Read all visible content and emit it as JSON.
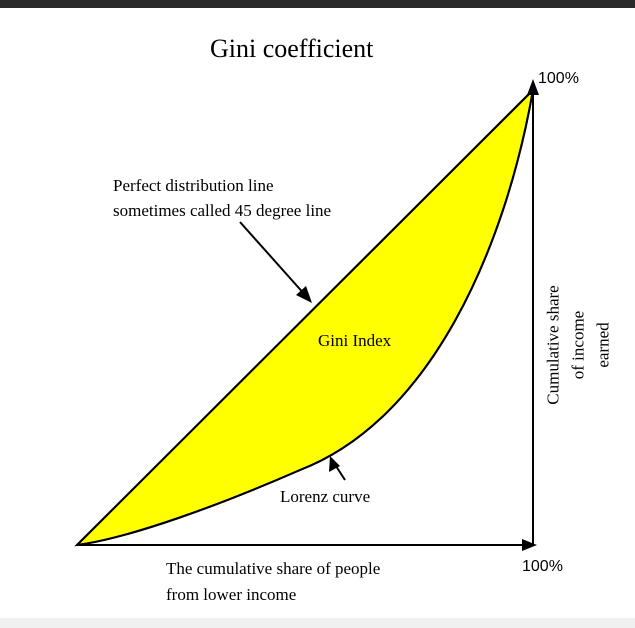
{
  "title": "Gini coefficient",
  "top_percent": "100%",
  "right_percent": "100%",
  "perfect_line_label": [
    "Perfect distribution line",
    "sometimes called 45 degree line"
  ],
  "gini_index_label": "Gini Index",
  "lorenz_label": "Lorenz curve",
  "x_axis_label": [
    "The cumulative share of people",
    "from lower income"
  ],
  "y_axis_label": [
    "Cumulative share",
    "of income",
    "earned"
  ],
  "colors": {
    "fill": "#ffff00",
    "stroke": "#000000"
  }
}
